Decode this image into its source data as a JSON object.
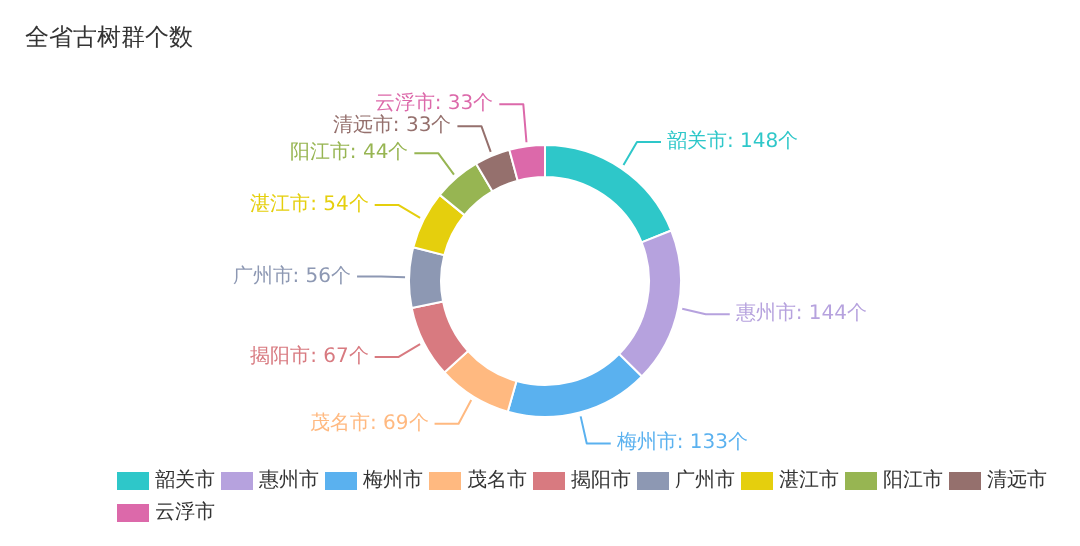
{
  "chart_data": {
    "type": "donut",
    "title": "全省古树群个数",
    "categories": [
      "韶关市",
      "惠州市",
      "梅州市",
      "茂名市",
      "揭阳市",
      "广州市",
      "湛江市",
      "阳江市",
      "清远市",
      "云浮市"
    ],
    "values": [
      148,
      144,
      133,
      69,
      67,
      56,
      54,
      44,
      33,
      33
    ],
    "colors": [
      "#2ec7c9",
      "#b6a2de",
      "#5ab1ef",
      "#ffb980",
      "#d87a80",
      "#8d98b3",
      "#e5cf0d",
      "#97b552",
      "#95706d",
      "#dc69aa"
    ],
    "value_labels": [
      "韶关市: 148个",
      "惠州市: 144个",
      "梅州市: 133个",
      "茂名市: 69个",
      "揭阳市: 67个",
      "广州市: 56个",
      "湛江市: 54个",
      "阳江市: 44个",
      "清远市: 33个",
      "云浮市: 33个"
    ],
    "legend": "bottom"
  }
}
